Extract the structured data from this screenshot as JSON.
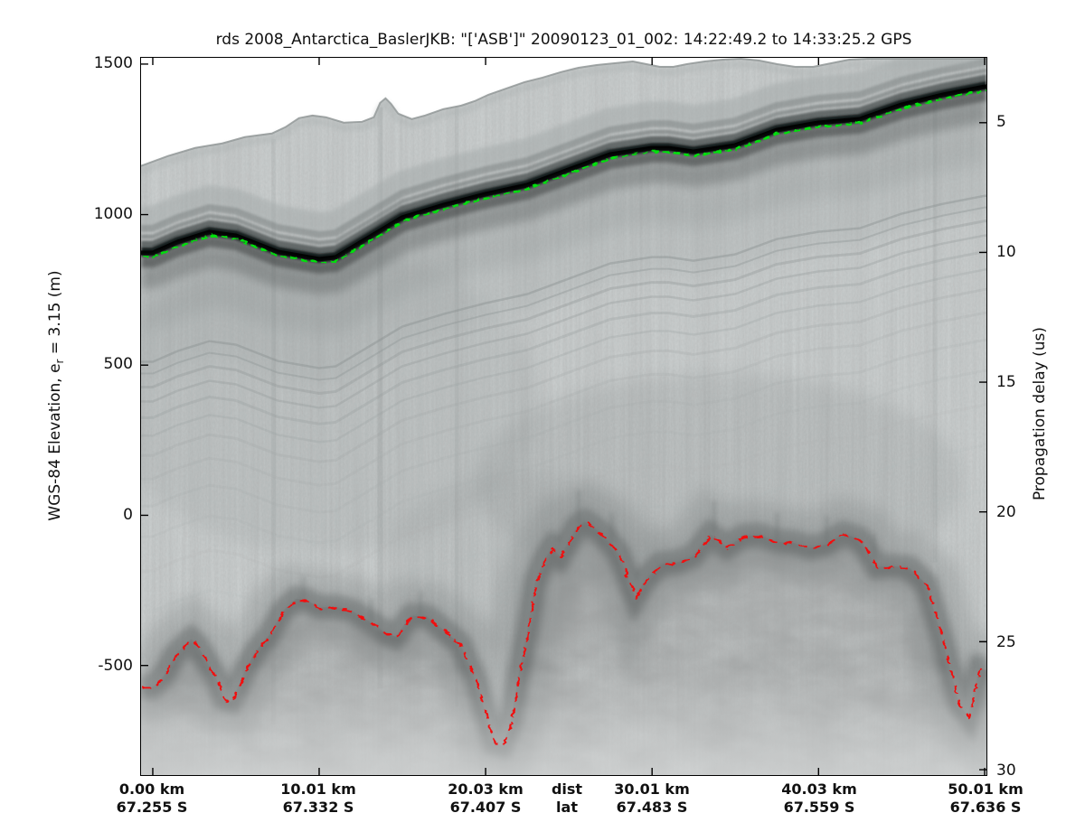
{
  "figure": {
    "title": "rds 2008_Antarctica_BaslerJKB: \"['ASB']\"  20090123_01_002: 14:22:49.2 to 14:33:25.2 GPS"
  },
  "left_axis": {
    "label_prefix": "WGS-84 Elevation, e",
    "label_sub": "r",
    "label_suffix": " = 3.15 (m)",
    "ticks": [
      "1500",
      "1000",
      "500",
      "0",
      "-500"
    ]
  },
  "right_axis": {
    "label": "Propagation delay (us)",
    "ticks": [
      "5",
      "10",
      "15",
      "20",
      "25",
      "30"
    ]
  },
  "x_axis": {
    "dist_header": "dist",
    "lat_header": "lat",
    "dist_ticks": [
      "0.00 km",
      "10.01 km",
      "20.03 km",
      "30.01 km",
      "40.03 km",
      "50.01 km"
    ],
    "lat_ticks": [
      "67.255 S",
      "67.332 S",
      "67.407 S",
      "67.483 S",
      "67.559 S",
      "67.636 S"
    ]
  },
  "chart_data": {
    "type": "heatmap",
    "description": "Airborne radar depth-sounder echogram (grayscale intensity) with picked ice-surface (green dashed) and bed (red dashed) horizons",
    "title": "rds 2008_Antarctica_BaslerJKB: \"['ASB']\"  20090123_01_002: 14:22:49.2 to 14:33:25.2 GPS",
    "xlabel_rows": [
      "dist",
      "lat"
    ],
    "x_ticks_km": [
      0.0,
      10.01,
      20.03,
      30.01,
      40.03,
      50.01
    ],
    "x_ticks_lat": [
      "67.255 S",
      "67.332 S",
      "67.407 S",
      "67.483 S",
      "67.559 S",
      "67.636 S"
    ],
    "ylabel_left": "WGS-84 Elevation, e_r = 3.15 (m)",
    "yticks_left_m": [
      1500,
      1000,
      500,
      0,
      -500
    ],
    "ylabel_right": "Propagation delay (us)",
    "yticks_right_us": [
      5,
      10,
      15,
      20,
      25,
      30
    ],
    "xlim_km": [
      -0.7,
      50.1
    ],
    "ylim_left_m": [
      -873,
      1521
    ],
    "grid": false,
    "legend": "none",
    "series": [
      {
        "name": "surface_pick",
        "color": "#00e008",
        "style": "dashed",
        "x_km": [
          0,
          1.5,
          3.4,
          5,
          7.5,
          10,
          11,
          13,
          15,
          17.5,
          20,
          22.5,
          25,
          27.5,
          30,
          31,
          32.5,
          35,
          37.5,
          40,
          42.5,
          45,
          47.5,
          50.01
        ],
        "elevation_m": [
          864,
          900,
          933,
          921,
          867,
          843,
          849,
          915,
          981,
          1023,
          1059,
          1089,
          1140,
          1191,
          1212,
          1212,
          1200,
          1221,
          1272,
          1296,
          1308,
          1356,
          1389,
          1416
        ]
      },
      {
        "name": "bed_pick",
        "color": "#f21111",
        "style": "dashed",
        "x_km": [
          0,
          0.6,
          1.3,
          2.0,
          2.3,
          2.7,
          3.2,
          3.8,
          4.3,
          4.7,
          5.1,
          5.6,
          6.2,
          7.0,
          7.8,
          8.6,
          9.3,
          10,
          11,
          12,
          13,
          14,
          14.6,
          15.5,
          16.5,
          17.5,
          18.5,
          19.5,
          20.5,
          21,
          21.5,
          22,
          22.5,
          23,
          23.5,
          24,
          24.5,
          25.5,
          26,
          27,
          28,
          29,
          29.5,
          30.5,
          31.5,
          32.5,
          33.5,
          34.5,
          35.5,
          36.5,
          37.5,
          38.5,
          39.5,
          40.5,
          41.5,
          42.5,
          43.5,
          44.5,
          45.5,
          46.5,
          47.5,
          48.5,
          49,
          49.7,
          50.01
        ],
        "elevation_m": [
          -570,
          -537,
          -465,
          -426,
          -411,
          -432,
          -480,
          -540,
          -612,
          -618,
          -573,
          -507,
          -450,
          -396,
          -318,
          -276,
          -282,
          -306,
          -303,
          -318,
          -351,
          -390,
          -402,
          -333,
          -336,
          -381,
          -429,
          -561,
          -756,
          -765,
          -693,
          -525,
          -390,
          -219,
          -150,
          -108,
          -135,
          -36,
          -21,
          -60,
          -126,
          -270,
          -222,
          -162,
          -156,
          -135,
          -63,
          -105,
          -69,
          -66,
          -87,
          -90,
          -108,
          -96,
          -60,
          -78,
          -171,
          -168,
          -174,
          -228,
          -420,
          -630,
          -666,
          -507,
          -513
        ]
      }
    ]
  }
}
